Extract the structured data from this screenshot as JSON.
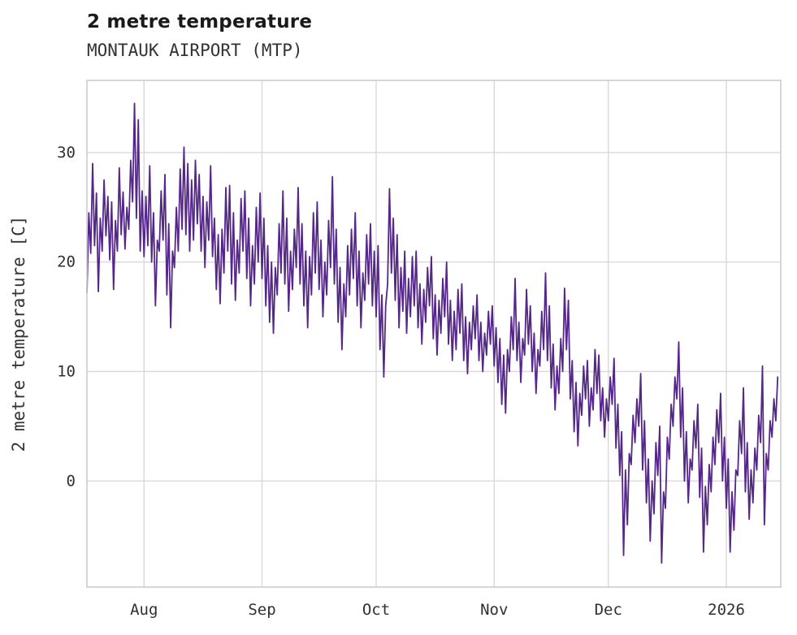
{
  "header": {
    "title": "2 metre temperature",
    "subtitle": "MONTAUK AIRPORT (MTP)"
  },
  "chart_data": {
    "type": "line",
    "title": "2 metre temperature",
    "subtitle": "MONTAUK AIRPORT (MTP)",
    "xlabel": "",
    "ylabel": "2 metre temperature [C]",
    "series_name": "2 metre temperature",
    "line_color": "#542788",
    "grid": true,
    "legend": "none",
    "background_color": "#ffffff",
    "grid_color": "#d9d9d9",
    "spine_color": "#cccccc",
    "tick_text_color": "#303030",
    "ylim": [
      -9.7,
      36.6
    ],
    "y_ticks": [
      0,
      10,
      20,
      30
    ],
    "xlim_days": [
      0,
      182.3
    ],
    "x_ticks": [
      {
        "label": "Aug",
        "day": 15
      },
      {
        "label": "Sep",
        "day": 46
      },
      {
        "label": "Oct",
        "day": 76
      },
      {
        "label": "Nov",
        "day": 107
      },
      {
        "label": "Dec",
        "day": 137
      },
      {
        "label": "2026",
        "day": 168
      }
    ],
    "sample_interval_days": 0.5,
    "values": [
      17.2,
      24.5,
      20.8,
      29.0,
      21.5,
      26.3,
      17.3,
      24.0,
      21.0,
      27.5,
      22.4,
      26.0,
      20.2,
      25.5,
      17.5,
      23.8,
      21.0,
      28.6,
      22.5,
      26.4,
      21.2,
      25.0,
      23.0,
      29.3,
      25.5,
      34.5,
      24.0,
      33.0,
      21.0,
      26.5,
      20.5,
      26.0,
      21.5,
      28.8,
      20.0,
      24.5,
      16.0,
      22.0,
      21.0,
      26.5,
      22.0,
      28.0,
      17.0,
      23.5,
      14.0,
      21.0,
      19.5,
      25.0,
      21.0,
      28.5,
      23.0,
      30.5,
      22.5,
      29.0,
      21.0,
      27.5,
      22.0,
      29.3,
      23.5,
      28.0,
      21.0,
      26.0,
      19.5,
      25.5,
      22.0,
      28.8,
      20.5,
      24.0,
      17.5,
      22.5,
      16.2,
      23.0,
      19.0,
      26.8,
      21.0,
      27.0,
      18.0,
      24.5,
      16.5,
      22.0,
      19.0,
      25.8,
      21.0,
      26.5,
      18.5,
      24.0,
      16.0,
      21.5,
      18.0,
      25.0,
      20.0,
      26.3,
      18.5,
      24.0,
      16.0,
      21.5,
      14.5,
      20.0,
      13.5,
      19.5,
      17.0,
      23.5,
      19.0,
      26.5,
      18.0,
      24.0,
      15.5,
      21.0,
      17.5,
      23.0,
      19.5,
      26.8,
      18.0,
      23.5,
      16.0,
      21.0,
      14.0,
      20.5,
      17.0,
      24.5,
      19.0,
      25.5,
      17.5,
      22.0,
      15.0,
      20.0,
      17.0,
      23.8,
      19.5,
      27.8,
      18.0,
      23.0,
      14.5,
      19.5,
      12.0,
      18.0,
      15.0,
      21.5,
      17.0,
      23.0,
      18.5,
      24.5,
      16.0,
      21.0,
      14.0,
      19.0,
      16.5,
      22.5,
      18.0,
      23.5,
      16.0,
      21.0,
      15.0,
      21.5,
      12.0,
      17.0,
      9.5,
      16.0,
      18.0,
      26.7,
      19.0,
      24.0,
      16.5,
      22.5,
      14.0,
      19.5,
      15.5,
      21.0,
      13.5,
      18.5,
      15.0,
      20.5,
      16.0,
      21.0,
      14.0,
      18.0,
      12.5,
      17.5,
      14.5,
      19.5,
      16.0,
      20.5,
      13.0,
      17.0,
      11.5,
      16.5,
      13.5,
      18.5,
      15.0,
      20.0,
      12.5,
      16.5,
      11.0,
      15.5,
      12.0,
      17.5,
      13.5,
      18.0,
      11.0,
      15.0,
      9.8,
      14.5,
      12.0,
      16.0,
      13.0,
      17.0,
      11.0,
      14.5,
      10.0,
      13.5,
      11.5,
      15.5,
      12.5,
      16.0,
      10.5,
      14.0,
      9.0,
      13.0,
      7.0,
      11.5,
      6.2,
      12.0,
      10.0,
      15.0,
      12.0,
      18.5,
      11.0,
      14.5,
      9.0,
      13.0,
      11.5,
      17.5,
      12.5,
      16.0,
      10.0,
      13.5,
      8.0,
      12.0,
      10.5,
      15.5,
      12.0,
      19.0,
      11.0,
      16.0,
      8.5,
      12.5,
      6.5,
      10.5,
      8.0,
      13.0,
      10.0,
      17.6,
      12.0,
      16.5,
      7.5,
      11.0,
      4.5,
      9.0,
      3.2,
      8.0,
      6.0,
      10.5,
      7.5,
      11.0,
      5.0,
      8.5,
      6.5,
      12.0,
      8.0,
      11.5,
      5.5,
      8.5,
      4.0,
      7.5,
      5.5,
      9.5,
      7.0,
      11.2,
      3.0,
      7.0,
      0.5,
      4.5,
      -6.8,
      1.0,
      -4.0,
      2.5,
      1.5,
      6.0,
      3.5,
      7.5,
      5.0,
      9.8,
      1.0,
      5.5,
      -2.0,
      2.0,
      -5.5,
      0.0,
      -3.0,
      3.5,
      0.5,
      5.0,
      -7.5,
      -1.0,
      -2.5,
      4.0,
      2.0,
      7.0,
      5.0,
      9.5,
      7.5,
      12.7,
      4.0,
      8.5,
      0.0,
      4.5,
      -2.0,
      2.0,
      1.0,
      5.5,
      3.0,
      7.0,
      -1.5,
      3.0,
      -6.5,
      -0.5,
      -4.0,
      1.5,
      -1.0,
      4.0,
      1.5,
      6.5,
      3.5,
      8.0,
      0.0,
      4.0,
      -2.5,
      2.0,
      -6.5,
      -1.0,
      -4.5,
      1.0,
      0.5,
      5.5,
      2.5,
      8.5,
      -1.0,
      3.5,
      -3.5,
      1.0,
      -2.0,
      3.0,
      1.0,
      6.0,
      3.5,
      10.5,
      -4.0,
      2.5,
      1.0,
      5.5,
      4.0,
      7.5,
      5.5,
      9.5
    ]
  }
}
